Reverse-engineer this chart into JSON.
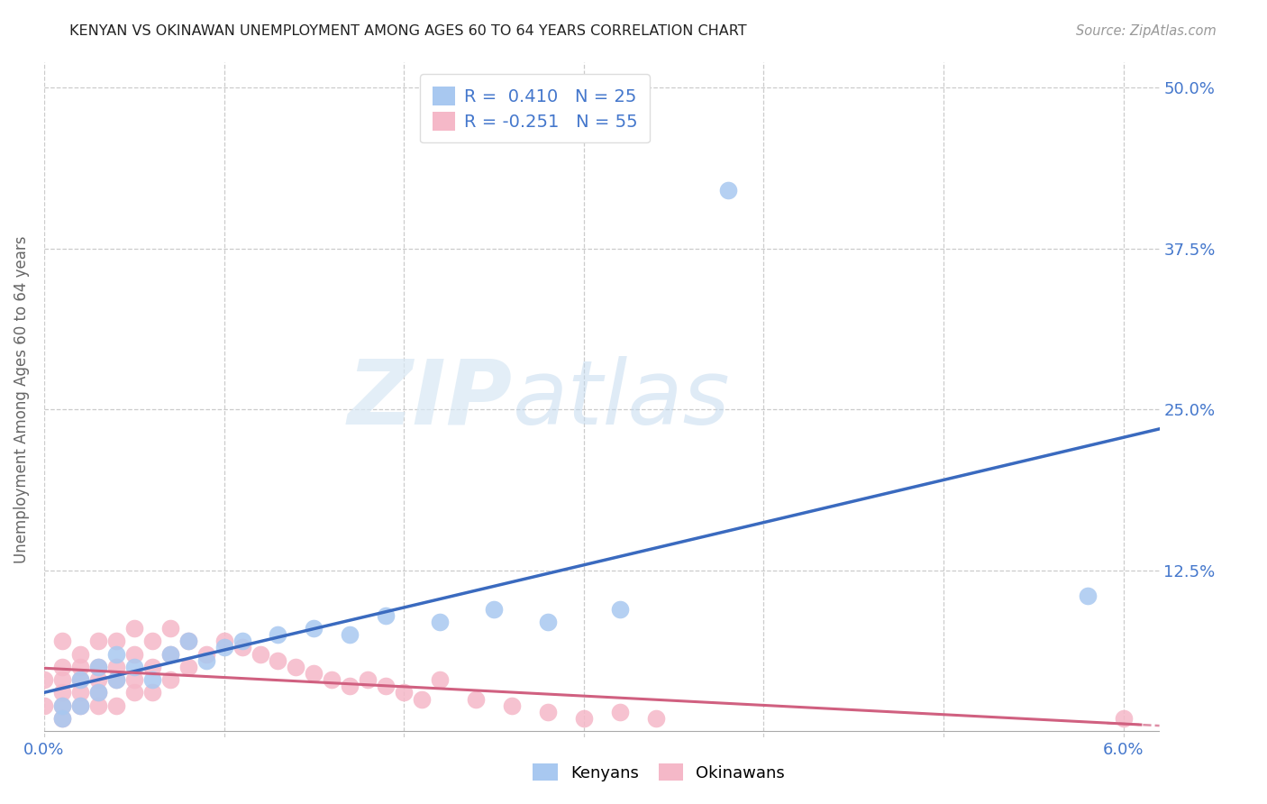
{
  "title": "KENYAN VS OKINAWAN UNEMPLOYMENT AMONG AGES 60 TO 64 YEARS CORRELATION CHART",
  "source": "Source: ZipAtlas.com",
  "ylabel": "Unemployment Among Ages 60 to 64 years",
  "xlim": [
    0.0,
    0.062
  ],
  "ylim": [
    -0.005,
    0.52
  ],
  "background_color": "#ffffff",
  "watermark_zip": "ZIP",
  "watermark_atlas": "atlas",
  "kenyan_color": "#a8c8f0",
  "okinawan_color": "#f5b8c8",
  "kenyan_R": 0.41,
  "kenyan_N": 25,
  "okinawan_R": -0.251,
  "okinawan_N": 55,
  "kenyan_line_color": "#3a6abf",
  "okinawan_line_color": "#d06080",
  "legend_color": "#4477cc",
  "kenyan_x": [
    0.001,
    0.001,
    0.002,
    0.002,
    0.003,
    0.003,
    0.004,
    0.004,
    0.005,
    0.006,
    0.007,
    0.008,
    0.009,
    0.01,
    0.011,
    0.013,
    0.015,
    0.017,
    0.019,
    0.022,
    0.025,
    0.028,
    0.032,
    0.038,
    0.058
  ],
  "kenyan_y": [
    0.01,
    0.02,
    0.02,
    0.04,
    0.03,
    0.05,
    0.04,
    0.06,
    0.05,
    0.04,
    0.06,
    0.07,
    0.055,
    0.065,
    0.07,
    0.075,
    0.08,
    0.075,
    0.09,
    0.085,
    0.095,
    0.085,
    0.095,
    0.42,
    0.105
  ],
  "okinawan_x": [
    0.0,
    0.0,
    0.001,
    0.001,
    0.001,
    0.001,
    0.001,
    0.001,
    0.002,
    0.002,
    0.002,
    0.002,
    0.002,
    0.003,
    0.003,
    0.003,
    0.003,
    0.003,
    0.004,
    0.004,
    0.004,
    0.004,
    0.005,
    0.005,
    0.005,
    0.005,
    0.006,
    0.006,
    0.006,
    0.007,
    0.007,
    0.007,
    0.008,
    0.008,
    0.009,
    0.01,
    0.011,
    0.012,
    0.013,
    0.014,
    0.015,
    0.016,
    0.017,
    0.018,
    0.019,
    0.02,
    0.021,
    0.022,
    0.024,
    0.026,
    0.028,
    0.03,
    0.032,
    0.034,
    0.06
  ],
  "okinawan_y": [
    0.02,
    0.04,
    0.01,
    0.02,
    0.03,
    0.04,
    0.05,
    0.07,
    0.02,
    0.03,
    0.04,
    0.05,
    0.06,
    0.02,
    0.03,
    0.04,
    0.05,
    0.07,
    0.02,
    0.04,
    0.05,
    0.07,
    0.03,
    0.04,
    0.06,
    0.08,
    0.03,
    0.05,
    0.07,
    0.04,
    0.06,
    0.08,
    0.05,
    0.07,
    0.06,
    0.07,
    0.065,
    0.06,
    0.055,
    0.05,
    0.045,
    0.04,
    0.035,
    0.04,
    0.035,
    0.03,
    0.025,
    0.04,
    0.025,
    0.02,
    0.015,
    0.01,
    0.015,
    0.01,
    0.01
  ],
  "ytick_positions": [
    0.125,
    0.25,
    0.375,
    0.5
  ],
  "ytick_labels": [
    "12.5%",
    "25.0%",
    "37.5%",
    "50.0%"
  ],
  "xtick_show": [
    0.0,
    0.06
  ],
  "xtick_show_labels": [
    "0.0%",
    "6.0%"
  ],
  "grid_xticks": [
    0.0,
    0.01,
    0.02,
    0.03,
    0.04,
    0.05,
    0.06
  ],
  "grid_yticks": [
    0.125,
    0.25,
    0.375,
    0.5
  ]
}
